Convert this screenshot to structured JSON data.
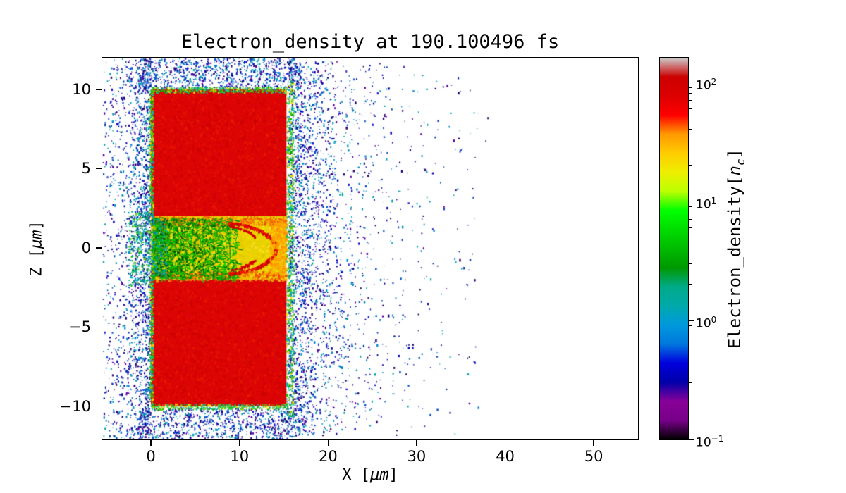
{
  "figure": {
    "background": "#ffffff"
  },
  "chart_data": {
    "type": "heatmap",
    "title": "Electron_density at 190.100496 fs",
    "xlabel_parts": {
      "prefix": "X [",
      "unit": "μm",
      "suffix": "]"
    },
    "ylabel_parts": {
      "prefix": "Z [",
      "unit": "μm",
      "suffix": "]"
    },
    "xlim": [
      -5.5,
      55
    ],
    "ylim": [
      -12.1,
      12.0
    ],
    "grid": false,
    "xticks": [
      {
        "label": "0",
        "value": 0
      },
      {
        "label": "10",
        "value": 10
      },
      {
        "label": "20",
        "value": 20
      },
      {
        "label": "30",
        "value": 30
      },
      {
        "label": "40",
        "value": 40
      },
      {
        "label": "50",
        "value": 50
      }
    ],
    "yticks": [
      {
        "label": "−10",
        "value": -10
      },
      {
        "label": "−5",
        "value": -5
      },
      {
        "label": "0",
        "value": 0
      },
      {
        "label": "5",
        "value": 5
      },
      {
        "label": "10",
        "value": 10
      }
    ],
    "colorbar": {
      "label_parts": {
        "prefix": "Electron_density[",
        "math_base": "n",
        "math_sub": "c",
        "suffix": "]"
      },
      "scale": "log",
      "vmin": 0.1,
      "vmax": 160,
      "ticks": [
        {
          "base": "10",
          "exp": "−1",
          "value": 0.1
        },
        {
          "base": "10",
          "exp": "0",
          "value": 1
        },
        {
          "base": "10",
          "exp": "1",
          "value": 10
        },
        {
          "base": "10",
          "exp": "2",
          "value": 100
        }
      ],
      "colormap": "nipy_spectral",
      "stops": [
        {
          "pos": 0.0,
          "color": "#000000"
        },
        {
          "pos": 0.05,
          "color": "#770088"
        },
        {
          "pos": 0.1,
          "color": "#880099"
        },
        {
          "pos": 0.15,
          "color": "#0000aa"
        },
        {
          "pos": 0.2,
          "color": "#0000dd"
        },
        {
          "pos": 0.25,
          "color": "#0077dd"
        },
        {
          "pos": 0.3,
          "color": "#0099dd"
        },
        {
          "pos": 0.35,
          "color": "#00aaaa"
        },
        {
          "pos": 0.4,
          "color": "#00aa88"
        },
        {
          "pos": 0.45,
          "color": "#009900"
        },
        {
          "pos": 0.5,
          "color": "#00bb00"
        },
        {
          "pos": 0.55,
          "color": "#00dd00"
        },
        {
          "pos": 0.6,
          "color": "#00ff00"
        },
        {
          "pos": 0.65,
          "color": "#bbff00"
        },
        {
          "pos": 0.7,
          "color": "#eeee00"
        },
        {
          "pos": 0.75,
          "color": "#ffcc00"
        },
        {
          "pos": 0.8,
          "color": "#ff9900"
        },
        {
          "pos": 0.85,
          "color": "#ff0000"
        },
        {
          "pos": 0.9,
          "color": "#dd0000"
        },
        {
          "pos": 0.95,
          "color": "#cc0000"
        },
        {
          "pos": 1.0,
          "color": "#cccccc"
        }
      ]
    },
    "features": {
      "slabs": [
        {
          "x0": 0,
          "x1": 15.3,
          "z0": 2,
          "z1": 10,
          "color": "#dc0404"
        },
        {
          "x0": 0,
          "x1": 15.3,
          "z0": -10,
          "z1": -2,
          "color": "#dc0404"
        }
      ],
      "channel": {
        "x0": 0,
        "x1": 15.3,
        "z0": -2,
        "z1": 2,
        "base_color": "#e8d200"
      },
      "red_arc": {
        "cx": 7.6,
        "cz": 0,
        "rx": 6.4,
        "rz": 1.62,
        "deg0": -80,
        "deg1": 80
      },
      "palettes": {
        "default": [
          "#17007a",
          "#0000b4",
          "#1e1ecc",
          "#0050cc",
          "#0082cc",
          "#0098bc",
          "#00a8a8",
          "#5a00a8",
          "#30006e",
          "#0a38b0"
        ],
        "edge": [
          "#00b400",
          "#46c800",
          "#00c896",
          "#ffdc00",
          "#00a8c8",
          "#64d200"
        ],
        "entrance": [
          "#00a878",
          "#00b400",
          "#009ec8",
          "#2828c8",
          "#64c800",
          "#008c8c",
          "#00c8b4"
        ]
      },
      "scatter_clusters": [
        {
          "type": "exp_left",
          "x0": -0.1,
          "scale": 1.7,
          "xmin": -5.45,
          "z": [
            -12.1,
            12.0
          ],
          "count": 1500
        },
        {
          "type": "uniform",
          "x": [
            -5.45,
            -0.3
          ],
          "z": [
            -12.1,
            12.0
          ],
          "count": 420
        },
        {
          "type": "exp_right",
          "x0": 15.45,
          "scale": 3.4,
          "xmax": 38,
          "z": [
            -11.8,
            11.8
          ],
          "count": 2400
        },
        {
          "type": "uniform",
          "x": [
            16,
            37
          ],
          "z": [
            -11,
            11.5
          ],
          "count": 300
        },
        {
          "type": "uniform",
          "x": [
            -1.5,
            16.8
          ],
          "z": [
            10.05,
            12.0
          ],
          "count": 850
        },
        {
          "type": "uniform",
          "x": [
            -1.5,
            16.8
          ],
          "z": [
            -12.05,
            -10.05
          ],
          "count": 850
        },
        {
          "type": "uniform",
          "x": [
            15.25,
            16.1
          ],
          "z": [
            -10.6,
            10.6
          ],
          "count": 750,
          "palette": "edge",
          "after": true
        },
        {
          "type": "uniform",
          "x": [
            -2.6,
            0.15
          ],
          "z": [
            -2.35,
            2.35
          ],
          "count": 420,
          "palette": "entrance",
          "after": true
        }
      ]
    }
  }
}
